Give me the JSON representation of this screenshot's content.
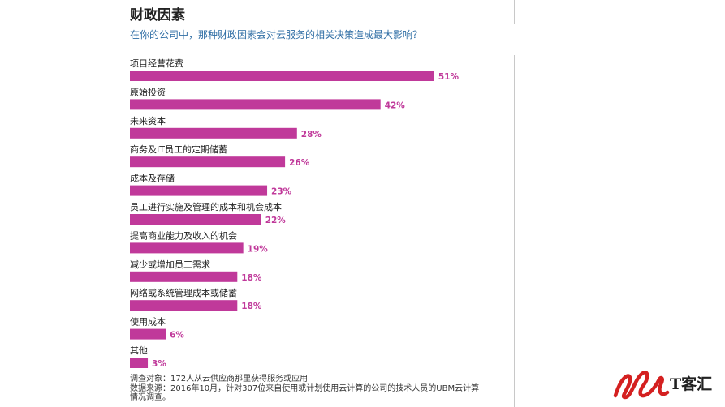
{
  "header": {
    "title": "财政因素",
    "subtitle": "在你的公司中，那种财政因素会对云服务的相关决策造成最大影响？"
  },
  "chart_data": {
    "type": "bar",
    "orientation": "horizontal",
    "title": "财政因素",
    "subtitle": "在你的公司中，那种财政因素会对云服务的相关决策造成最大影响？",
    "categories": [
      "项目经营花费",
      "原始投资",
      "未来资本",
      "商务及IT员工的定期储蓄",
      "成本及存储",
      "员工进行实施及管理的成本和机会成本",
      "提高商业能力及收入的机会",
      "减少或增加员工需求",
      "网络或系统管理成本或储蓄",
      "使用成本",
      "其他"
    ],
    "values": [
      51,
      42,
      28,
      26,
      23,
      22,
      19,
      18,
      18,
      6,
      3
    ],
    "value_labels": [
      "51%",
      "42%",
      "28%",
      "26%",
      "23%",
      "22%",
      "19%",
      "18%",
      "18%",
      "6%",
      "3%"
    ],
    "unit": "%",
    "bar_color": "#c0399a",
    "label_color": "#c0399a",
    "legend": "none",
    "grid": false
  },
  "footnote": {
    "line1": "调查对象：172人从云供应商那里获得服务或应用",
    "line2": "数据来源：2016年10月，针对307位来自使用或计划使用云计算的公司的技术人员的UBM云计算",
    "line3": "情况调查。"
  },
  "brand": {
    "logo_text": "T客汇",
    "logo_color": "#d42020"
  }
}
